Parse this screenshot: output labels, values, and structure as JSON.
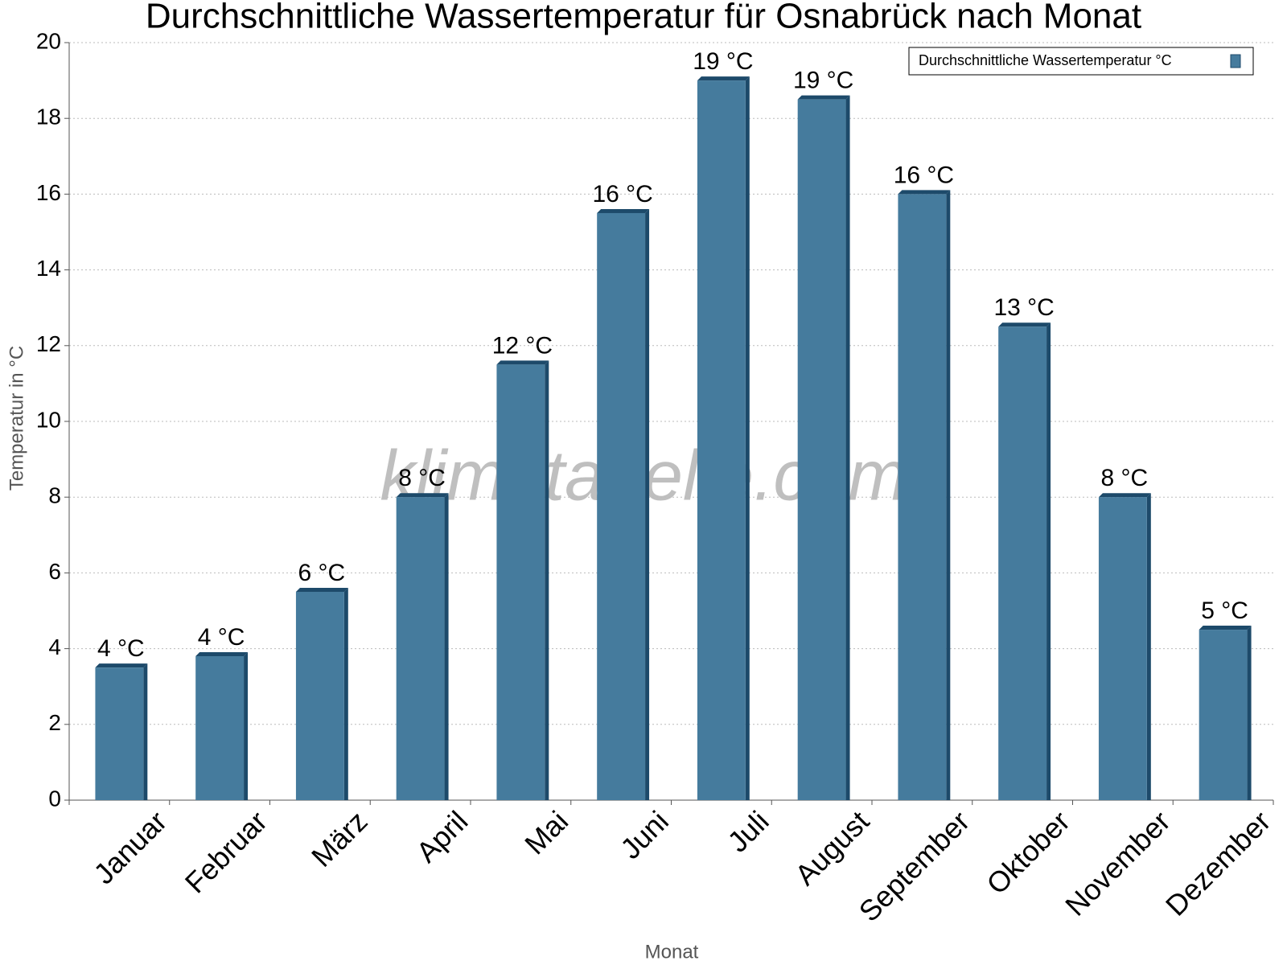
{
  "chart_data": {
    "type": "bar",
    "title": "Durchschnittliche Wassertemperatur für Osnabrück nach Monat",
    "x_label": "Monat",
    "y_label": "Temperatur in °C",
    "watermark": "klimatabelle.com",
    "categories": [
      "Januar",
      "Februar",
      "März",
      "April",
      "Mai",
      "Juni",
      "Juli",
      "August",
      "September",
      "Oktober",
      "November",
      "Dezember"
    ],
    "series": [
      {
        "name": "Durchschnittliche Wassertemperatur °C",
        "color": "#457b9d",
        "values": [
          3.5,
          3.8,
          5.5,
          8,
          11.5,
          15.5,
          19,
          18.5,
          16,
          12.5,
          8,
          4.5
        ],
        "value_labels": [
          "4 °C",
          "4 °C",
          "6 °C",
          "8 °C",
          "12 °C",
          "16 °C",
          "19 °C",
          "19 °C",
          "16 °C",
          "13 °C",
          "8 °C",
          "5 °C"
        ]
      }
    ],
    "ylim": [
      0,
      20
    ],
    "yticks": [
      0,
      2,
      4,
      6,
      8,
      10,
      12,
      14,
      16,
      18,
      20
    ],
    "grid": true,
    "legend": "upper right"
  }
}
